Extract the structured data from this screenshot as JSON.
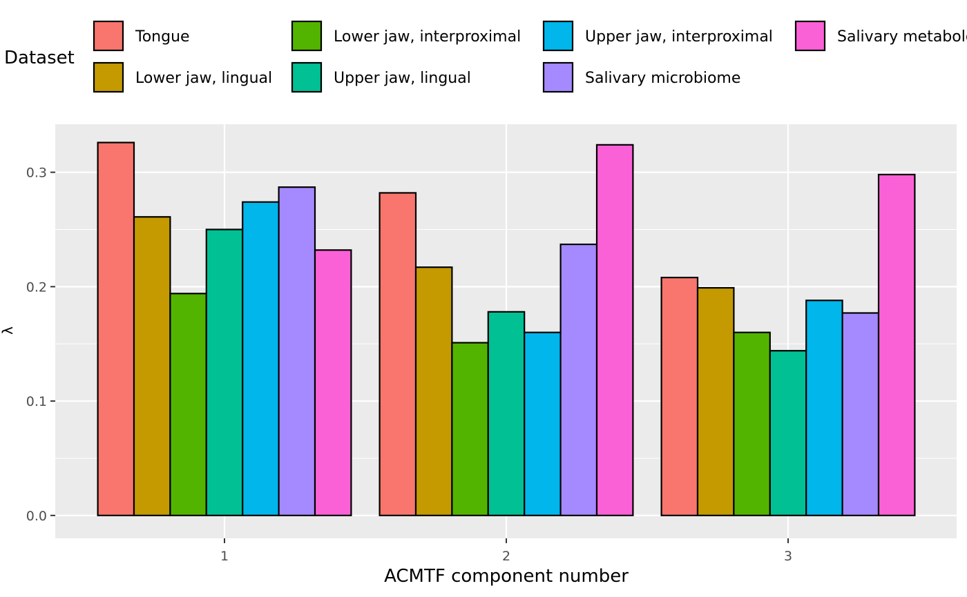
{
  "chart_data": {
    "type": "bar",
    "title": "",
    "xlabel": "ACMTF component number",
    "ylabel": "λ",
    "ylim": [
      -0.02,
      0.342
    ],
    "yticks": [
      0.0,
      0.1,
      0.2,
      0.3
    ],
    "ytick_labels": [
      "0.0",
      "0.1",
      "0.2",
      "0.3"
    ],
    "categories": [
      "1",
      "2",
      "3"
    ],
    "grid": true,
    "legend": {
      "title": "Dataset",
      "position": "top"
    },
    "series": [
      {
        "name": "Tongue",
        "color": "#F8766D",
        "values": [
          0.326,
          0.282,
          0.208
        ]
      },
      {
        "name": "Lower jaw, lingual",
        "color": "#C49A00",
        "values": [
          0.261,
          0.217,
          0.199
        ]
      },
      {
        "name": "Lower jaw, interproximal",
        "color": "#53B400",
        "values": [
          0.194,
          0.151,
          0.16
        ]
      },
      {
        "name": "Upper jaw, lingual",
        "color": "#00C094",
        "values": [
          0.25,
          0.178,
          0.144
        ]
      },
      {
        "name": "Upper jaw, interproximal",
        "color": "#00B6EB",
        "values": [
          0.274,
          0.16,
          0.188
        ]
      },
      {
        "name": "Salivary microbiome",
        "color": "#A58AFF",
        "values": [
          0.287,
          0.237,
          0.177
        ]
      },
      {
        "name": "Salivary metabolome",
        "color": "#FB61D7",
        "values": [
          0.232,
          0.324,
          0.298
        ]
      }
    ]
  }
}
